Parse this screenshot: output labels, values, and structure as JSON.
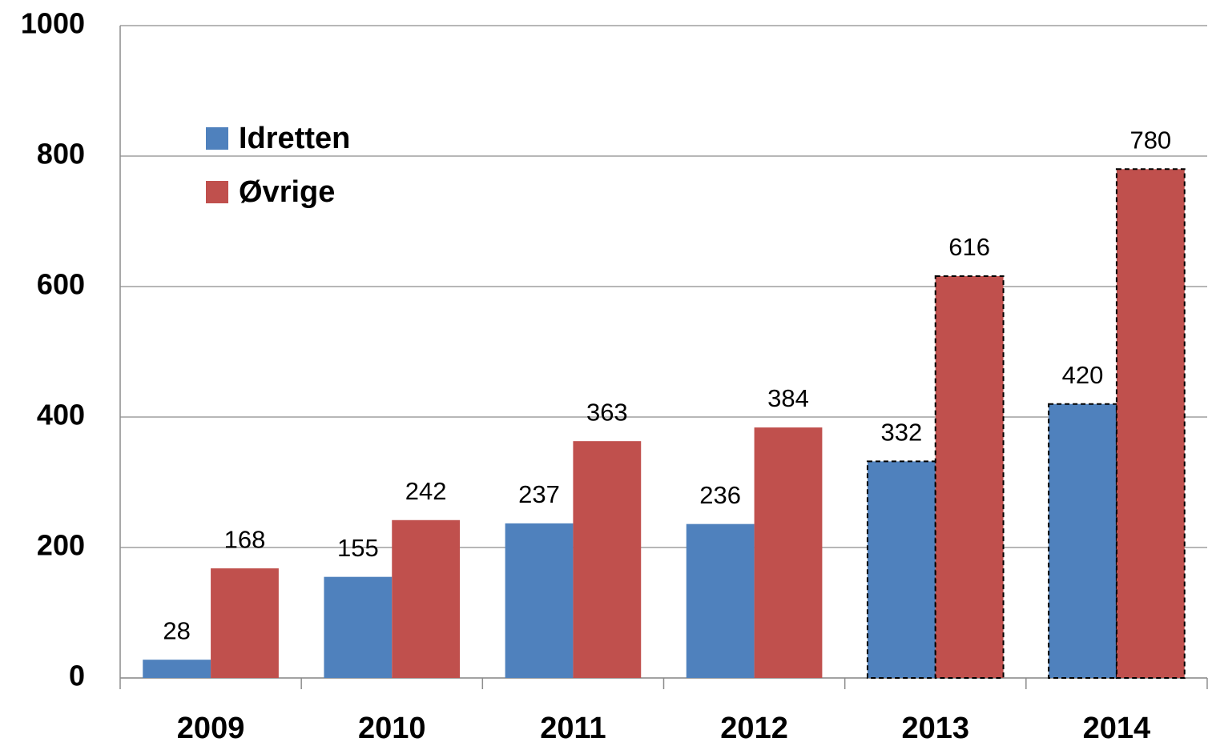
{
  "chart_data": {
    "type": "bar",
    "categories": [
      "2009",
      "2010",
      "2011",
      "2012",
      "2013",
      "2014"
    ],
    "series": [
      {
        "name": "Idretten",
        "color": "#4f81bd",
        "values": [
          28,
          155,
          237,
          236,
          332,
          420
        ]
      },
      {
        "name": "Øvrige",
        "color": "#c0504d",
        "values": [
          168,
          242,
          363,
          384,
          616,
          780
        ]
      }
    ],
    "dashed": [
      false,
      false,
      false,
      false,
      true,
      true
    ],
    "ylim": [
      0,
      1000
    ],
    "yticks": [
      0,
      200,
      400,
      600,
      800,
      1000
    ],
    "grid": true,
    "legend": "top-left"
  }
}
